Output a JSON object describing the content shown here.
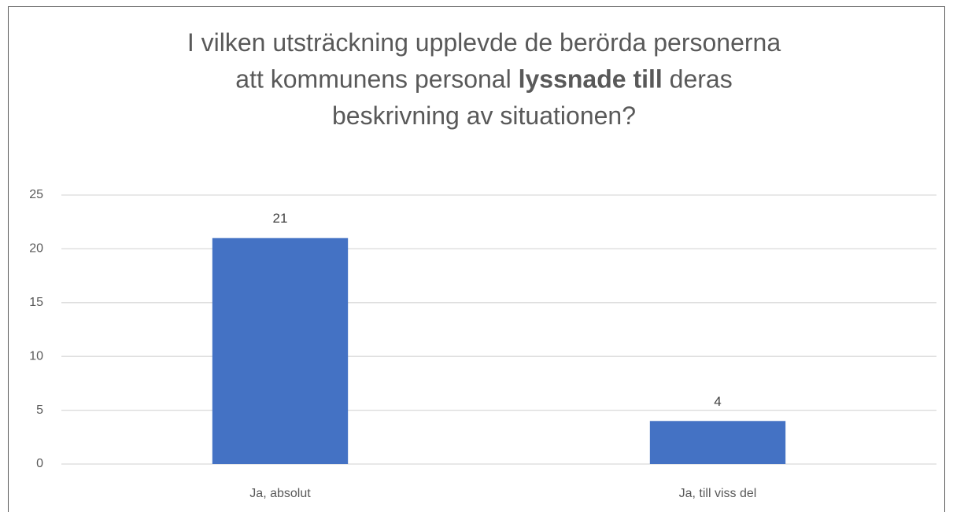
{
  "chart_data": {
    "type": "bar",
    "title": [
      [
        {
          "text": "I vilken utsträckning upplevde de berörda personerna",
          "bold": false
        }
      ],
      [
        {
          "text": "att kommunens personal ",
          "bold": false
        },
        {
          "text": "lyssnade till",
          "bold": true
        },
        {
          "text": " deras",
          "bold": false
        }
      ],
      [
        {
          "text": "beskrivning av situationen?",
          "bold": false
        }
      ]
    ],
    "categories": [
      "Ja, absolut",
      "Ja, till viss del"
    ],
    "values": [
      21,
      4
    ],
    "color": "#4472c4",
    "ylim": [
      0,
      25
    ],
    "yticks": [
      0,
      5,
      10,
      15,
      20,
      25
    ],
    "grid": true
  }
}
